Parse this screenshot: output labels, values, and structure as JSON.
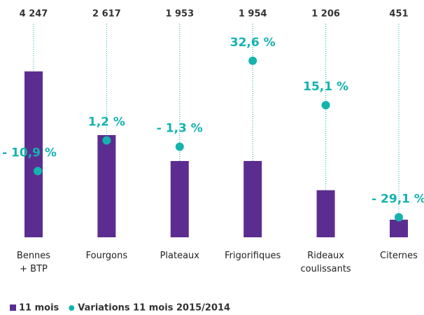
{
  "chart_data": {
    "type": "bar",
    "categories": [
      "Bennes\n+ BTP",
      "Fourgons",
      "Plateaux",
      "Frigorifiques",
      "Rideaux\ncoulissants",
      "Citernes"
    ],
    "series": [
      {
        "name": "11 mois",
        "color": "#5c2d91",
        "values": [
          4247,
          2617,
          1953,
          1954,
          1206,
          451
        ],
        "value_labels": [
          "4 247",
          "2 617",
          "1 953",
          "1 954",
          "1 206",
          "451"
        ]
      },
      {
        "name": "Variations 11 mois 2015/2014",
        "color": "#14b3ae",
        "type": "scatter",
        "axis": "y2",
        "values": [
          -10.9,
          1.2,
          -1.3,
          32.6,
          15.1,
          -29.1
        ],
        "value_labels": [
          "- 10,9 %",
          "1,2 %",
          "- 1,3 %",
          "32,6 %",
          "15,1 %",
          "- 29,1 %"
        ]
      }
    ],
    "ylim": [
      0,
      5000
    ],
    "y2lim": [
      -37,
      40
    ]
  }
}
